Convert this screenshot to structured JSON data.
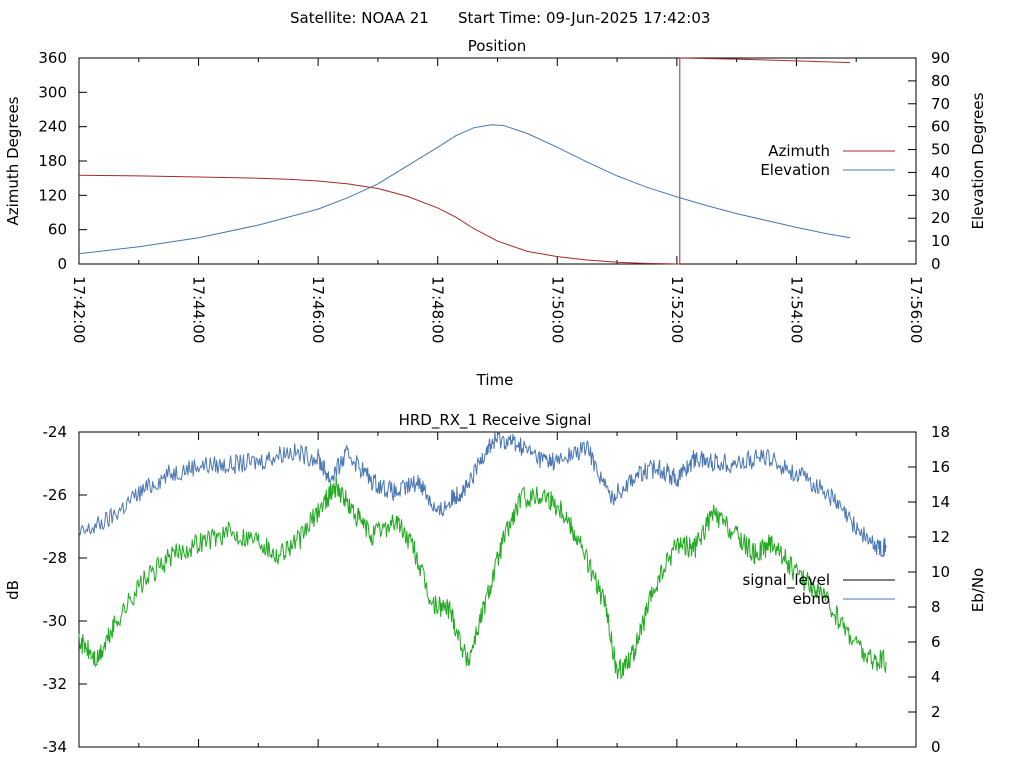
{
  "header": {
    "satellite": "Satellite: NOAA 21",
    "start_time": "Start Time: 09-Jun-2025 17:42:03"
  },
  "chart_data": [
    {
      "type": "line",
      "title": "Position",
      "xlabel": "Time",
      "ylabel": "Azimuth Degrees",
      "y2label": "Elevation Degrees",
      "xlim": [
        0,
        14
      ],
      "ylim": [
        0,
        360
      ],
      "y2lim": [
        0,
        90
      ],
      "xticks": [
        "17:42:00",
        "17:44:00",
        "17:46:00",
        "17:48:00",
        "17:50:00",
        "17:52:00",
        "17:54:00",
        "17:56:00"
      ],
      "yticks": [
        0,
        60,
        120,
        180,
        240,
        300,
        360
      ],
      "y2ticks": [
        0,
        10,
        20,
        30,
        40,
        50,
        60,
        70,
        80,
        90
      ],
      "legend": "right",
      "series": [
        {
          "name": "Azimuth",
          "color": "#a52a2a",
          "axis": "left",
          "points": [
            [
              0,
              155
            ],
            [
              1,
              154
            ],
            [
              2,
              152
            ],
            [
              3,
              150
            ],
            [
              3.5,
              148
            ],
            [
              4,
              145
            ],
            [
              4.5,
              140
            ],
            [
              5,
              132
            ],
            [
              5.5,
              118
            ],
            [
              6,
              98
            ],
            [
              6.3,
              82
            ],
            [
              6.6,
              62
            ],
            [
              7,
              40
            ],
            [
              7.5,
              22
            ],
            [
              8,
              13
            ],
            [
              8.5,
              7
            ],
            [
              9,
              3
            ],
            [
              9.5,
              1
            ],
            [
              10.05,
              0
            ],
            [
              10.05,
              360
            ],
            [
              11,
              358
            ],
            [
              12,
              355
            ],
            [
              12.9,
              352
            ]
          ]
        },
        {
          "name": "Elevation",
          "color": "#4a77b4",
          "axis": "right",
          "points": [
            [
              0,
              4.5
            ],
            [
              1,
              7.5
            ],
            [
              2,
              11.5
            ],
            [
              3,
              17
            ],
            [
              4,
              24
            ],
            [
              4.5,
              29
            ],
            [
              5,
              35
            ],
            [
              5.5,
              43
            ],
            [
              6,
              51
            ],
            [
              6.3,
              56
            ],
            [
              6.6,
              59.5
            ],
            [
              6.9,
              60.8
            ],
            [
              7.1,
              60.5
            ],
            [
              7.5,
              57
            ],
            [
              8,
              51
            ],
            [
              8.5,
              44.5
            ],
            [
              9,
              38.5
            ],
            [
              9.5,
              33.5
            ],
            [
              10,
              29.3
            ],
            [
              10.5,
              25.5
            ],
            [
              11,
              22
            ],
            [
              11.5,
              19
            ],
            [
              12,
              16
            ],
            [
              12.5,
              13.3
            ],
            [
              12.9,
              11.5
            ]
          ]
        }
      ]
    },
    {
      "type": "line",
      "title": "HRD_RX_1 Receive Signal",
      "ylabel": "dB",
      "y2label": "Eb/No",
      "xlim": [
        0,
        14
      ],
      "ylim": [
        -34,
        -24
      ],
      "y2lim": [
        0,
        18
      ],
      "yticks": [
        -34,
        -32,
        -30,
        -28,
        -26,
        -24
      ],
      "y2ticks": [
        0,
        2,
        4,
        6,
        8,
        10,
        12,
        14,
        16,
        18
      ],
      "legend": "right",
      "series": [
        {
          "name": "signal_level",
          "color": "#000000",
          "axis": "left",
          "points": []
        },
        {
          "name": "ebno",
          "color": "#4a77b4",
          "axis": "right",
          "points": [
            [
              0,
              12.1
            ],
            [
              0.5,
              13
            ],
            [
              1,
              14.5
            ],
            [
              1.5,
              15.6
            ],
            [
              2,
              16.1
            ],
            [
              2.5,
              16.1
            ],
            [
              3,
              16.3
            ],
            [
              3.5,
              16.9
            ],
            [
              4,
              16.5
            ],
            [
              4.2,
              15.3
            ],
            [
              4.5,
              16.8
            ],
            [
              4.9,
              15.2
            ],
            [
              5.3,
              14.5
            ],
            [
              5.7,
              15.2
            ],
            [
              6,
              13.3
            ],
            [
              6.3,
              14.4
            ],
            [
              6.5,
              14.8
            ],
            [
              6.8,
              17
            ],
            [
              7,
              17.6
            ],
            [
              7.3,
              17.4
            ],
            [
              7.7,
              16.5
            ],
            [
              8,
              16.3
            ],
            [
              8.5,
              17.1
            ],
            [
              8.9,
              14.2
            ],
            [
              9.3,
              15.5
            ],
            [
              9.7,
              16
            ],
            [
              10,
              15.3
            ],
            [
              10.3,
              16.5
            ],
            [
              10.6,
              16.3
            ],
            [
              11,
              16.2
            ],
            [
              11.5,
              16.6
            ],
            [
              12,
              15.6
            ],
            [
              12.5,
              14.6
            ],
            [
              12.9,
              12.9
            ],
            [
              13.3,
              11.5
            ],
            [
              13.5,
              11.4
            ]
          ]
        },
        {
          "name": "",
          "color": "#22aa22",
          "axis": "left",
          "points": [
            [
              0,
              -30.6
            ],
            [
              0.3,
              -31.3
            ],
            [
              0.6,
              -30.1
            ],
            [
              1,
              -28.9
            ],
            [
              1.5,
              -28
            ],
            [
              2,
              -27.5
            ],
            [
              2.5,
              -27.2
            ],
            [
              3,
              -27.4
            ],
            [
              3.3,
              -27.9
            ],
            [
              3.7,
              -27.4
            ],
            [
              4.1,
              -26.2
            ],
            [
              4.3,
              -25.7
            ],
            [
              4.6,
              -26.6
            ],
            [
              4.9,
              -27.3
            ],
            [
              5.3,
              -26.8
            ],
            [
              5.6,
              -27.7
            ],
            [
              5.9,
              -29.5
            ],
            [
              6.2,
              -29.6
            ],
            [
              6.5,
              -31.3
            ],
            [
              6.8,
              -29.4
            ],
            [
              7.1,
              -27.4
            ],
            [
              7.4,
              -26.1
            ],
            [
              7.8,
              -26.0
            ],
            [
              8.1,
              -26.5
            ],
            [
              8.4,
              -27.6
            ],
            [
              8.8,
              -29.5
            ],
            [
              9,
              -31.7
            ],
            [
              9.3,
              -30.9
            ],
            [
              9.6,
              -29.1
            ],
            [
              10,
              -27.5
            ],
            [
              10.3,
              -27.7
            ],
            [
              10.6,
              -26.6
            ],
            [
              11,
              -27.3
            ],
            [
              11.3,
              -27.9
            ],
            [
              11.6,
              -27.5
            ],
            [
              12,
              -28.5
            ],
            [
              12.4,
              -29.1
            ],
            [
              12.8,
              -30.2
            ],
            [
              13.2,
              -31.2
            ],
            [
              13.5,
              -31.3
            ]
          ]
        }
      ]
    }
  ]
}
